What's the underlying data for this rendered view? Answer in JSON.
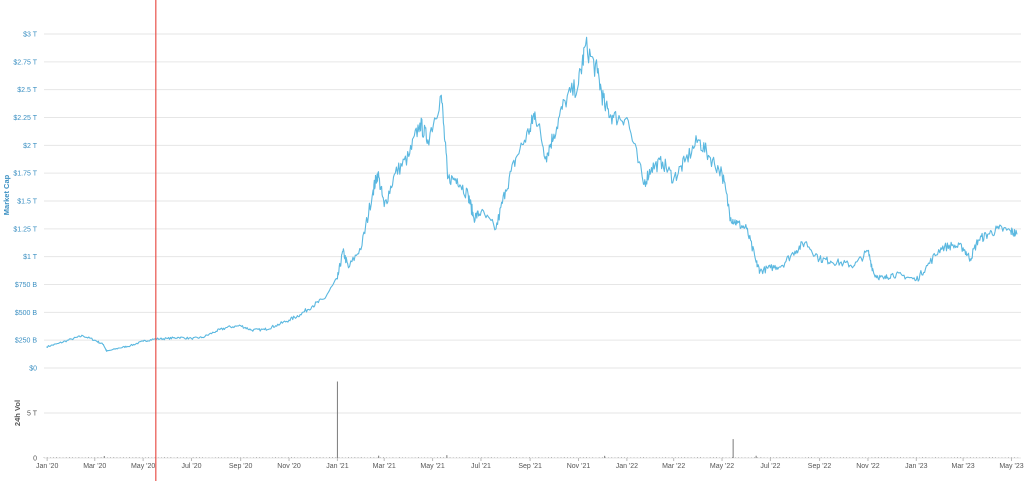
{
  "colors": {
    "line": "#5bb8e0",
    "volume": "#7a7a7a",
    "marker": "#e8524a",
    "grid": "#e6e6e6"
  },
  "chart_data": [
    {
      "type": "line",
      "title": "",
      "ylabel": "Market Cap",
      "xlabel": "",
      "ylim": [
        0,
        3000000000000
      ],
      "y_tick_labels": [
        "$0",
        "$250 B",
        "$500 B",
        "$750 B",
        "$1 T",
        "$1.25 T",
        "$1.5 T",
        "$1.75 T",
        "$2 T",
        "$2.25 T",
        "$2.5 T",
        "$2.75 T",
        "$3 T"
      ],
      "x_tick_labels": [
        "Jan '20",
        "Mar '20",
        "May '20",
        "Jul '20",
        "Sep '20",
        "Nov '20",
        "Jan '21",
        "Mar '21",
        "May '21",
        "Jul '21",
        "Sep '21",
        "Nov '21",
        "Jan '22",
        "Mar '22",
        "May '22",
        "Jul '22",
        "Sep '22",
        "Nov '22",
        "Jan '23",
        "Mar '23",
        "May '23"
      ],
      "x_range": [
        "2019-12-28",
        "2023-05-13"
      ],
      "grid": true,
      "legend": "none",
      "marker_line_date": "2020-05-17",
      "series": [
        {
          "x": [
            "2019-12-31",
            "2020-01-15",
            "2020-02-01",
            "2020-02-15",
            "2020-03-01",
            "2020-03-12",
            "2020-03-16",
            "2020-04-01",
            "2020-04-15",
            "2020-05-01",
            "2020-05-15",
            "2020-06-01",
            "2020-06-15",
            "2020-07-01",
            "2020-07-15",
            "2020-08-01",
            "2020-08-15",
            "2020-09-01",
            "2020-09-15",
            "2020-10-01",
            "2020-10-15",
            "2020-11-01",
            "2020-11-15",
            "2020-12-01",
            "2020-12-15",
            "2021-01-01",
            "2021-01-08",
            "2021-01-15",
            "2021-02-01",
            "2021-02-15",
            "2021-02-21",
            "2021-03-01",
            "2021-03-15",
            "2021-04-01",
            "2021-04-15",
            "2021-04-25",
            "2021-05-12",
            "2021-05-20",
            "2021-06-01",
            "2021-06-15",
            "2021-06-22",
            "2021-07-01",
            "2021-07-20",
            "2021-08-01",
            "2021-08-15",
            "2021-09-01",
            "2021-09-07",
            "2021-09-21",
            "2021-10-01",
            "2021-10-15",
            "2021-11-01",
            "2021-11-10",
            "2021-11-25",
            "2021-12-04",
            "2021-12-15",
            "2022-01-01",
            "2022-01-22",
            "2022-02-01",
            "2022-02-15",
            "2022-03-01",
            "2022-03-15",
            "2022-04-01",
            "2022-04-15",
            "2022-05-01",
            "2022-05-12",
            "2022-05-20",
            "2022-06-01",
            "2022-06-13",
            "2022-06-18",
            "2022-07-01",
            "2022-07-15",
            "2022-08-01",
            "2022-08-14",
            "2022-09-01",
            "2022-09-15",
            "2022-10-01",
            "2022-10-15",
            "2022-11-01",
            "2022-11-09",
            "2022-11-21",
            "2022-12-01",
            "2022-12-15",
            "2023-01-01",
            "2023-01-15",
            "2023-02-01",
            "2023-02-15",
            "2023-03-01",
            "2023-03-10",
            "2023-03-20",
            "2023-04-01",
            "2023-04-15",
            "2023-04-30",
            "2023-05-08"
          ],
          "values": [
            190000000000,
            220000000000,
            260000000000,
            290000000000,
            250000000000,
            210000000000,
            150000000000,
            180000000000,
            200000000000,
            240000000000,
            260000000000,
            265000000000,
            275000000000,
            265000000000,
            275000000000,
            330000000000,
            365000000000,
            380000000000,
            340000000000,
            345000000000,
            380000000000,
            430000000000,
            480000000000,
            560000000000,
            620000000000,
            800000000000,
            1050000000000,
            900000000000,
            1100000000000,
            1600000000000,
            1750000000000,
            1450000000000,
            1750000000000,
            1900000000000,
            2200000000000,
            2050000000000,
            2450000000000,
            1700000000000,
            1700000000000,
            1550000000000,
            1350000000000,
            1400000000000,
            1250000000000,
            1600000000000,
            1900000000000,
            2150000000000,
            2300000000000,
            1900000000000,
            2100000000000,
            2400000000000,
            2550000000000,
            2900000000000,
            2650000000000,
            2350000000000,
            2250000000000,
            2250000000000,
            1650000000000,
            1800000000000,
            1850000000000,
            1700000000000,
            1850000000000,
            2050000000000,
            1900000000000,
            1750000000000,
            1350000000000,
            1300000000000,
            1250000000000,
            950000000000,
            870000000000,
            900000000000,
            920000000000,
            1050000000000,
            1130000000000,
            980000000000,
            960000000000,
            940000000000,
            920000000000,
            1050000000000,
            840000000000,
            800000000000,
            840000000000,
            830000000000,
            790000000000,
            920000000000,
            1080000000000,
            1100000000000,
            1080000000000,
            980000000000,
            1150000000000,
            1200000000000,
            1250000000000,
            1230000000000,
            1200000000000
          ]
        }
      ]
    },
    {
      "type": "bar",
      "title": "",
      "ylabel": "24h Vol",
      "xlabel": "",
      "ylim": [
        0,
        10000000000000
      ],
      "y_tick_labels": [
        "0",
        "5 T"
      ],
      "spikes": [
        {
          "x": "2021-01-01",
          "value": 8500000000000
        },
        {
          "x": "2022-05-15",
          "value": 2100000000000
        },
        {
          "x": "2021-05-19",
          "value": 320000000000
        },
        {
          "x": "2021-02-22",
          "value": 260000000000
        },
        {
          "x": "2020-03-13",
          "value": 220000000000
        },
        {
          "x": "2021-12-04",
          "value": 240000000000
        },
        {
          "x": "2022-06-13",
          "value": 250000000000
        }
      ],
      "baseline_value": 90000000000
    }
  ]
}
